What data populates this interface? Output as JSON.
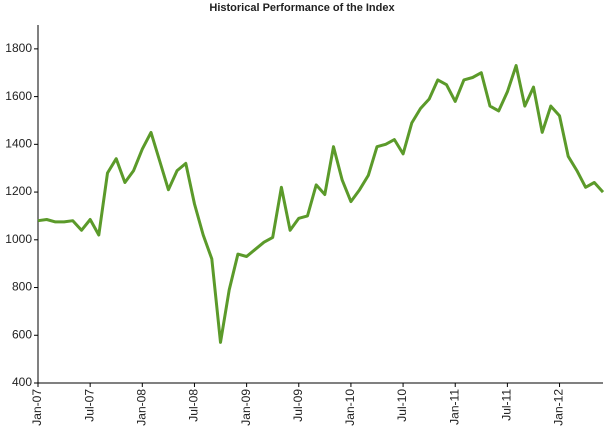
{
  "chart_data": {
    "type": "line",
    "title": "Historical Performance of the Index",
    "categories": [
      "Jan-07",
      null,
      null,
      null,
      null,
      null,
      "Jul-07",
      null,
      null,
      null,
      null,
      null,
      "Jan-08",
      null,
      null,
      null,
      null,
      null,
      "Jul-08",
      null,
      null,
      null,
      null,
      null,
      "Jan-09",
      null,
      null,
      null,
      null,
      null,
      "Jul-09",
      null,
      null,
      null,
      null,
      null,
      "Jan-10",
      null,
      null,
      null,
      null,
      null,
      "Jul-10",
      null,
      null,
      null,
      null,
      null,
      "Jan-11",
      null,
      null,
      null,
      null,
      null,
      "Jul-11",
      null,
      null,
      null,
      null,
      null,
      "Jan-12",
      null,
      null,
      null,
      null,
      null
    ],
    "values": [
      1080,
      1085,
      1075,
      1075,
      1080,
      1040,
      1085,
      1020,
      1280,
      1340,
      1240,
      1290,
      1380,
      1450,
      1330,
      1210,
      1290,
      1320,
      1150,
      1020,
      920,
      570,
      790,
      940,
      930,
      960,
      990,
      1010,
      1220,
      1040,
      1090,
      1100,
      1230,
      1190,
      1390,
      1250,
      1160,
      1210,
      1270,
      1390,
      1400,
      1420,
      1360,
      1490,
      1550,
      1590,
      1670,
      1650,
      1580,
      1670,
      1680,
      1700,
      1560,
      1540,
      1620,
      1730,
      1560,
      1640,
      1450,
      1560,
      1520,
      1350,
      1290,
      1220,
      1240,
      1200
    ],
    "color": "#5b9a2a",
    "ylim": [
      400,
      1900
    ],
    "yticks": [
      400,
      600,
      800,
      1000,
      1200,
      1400,
      1600,
      1800
    ]
  }
}
